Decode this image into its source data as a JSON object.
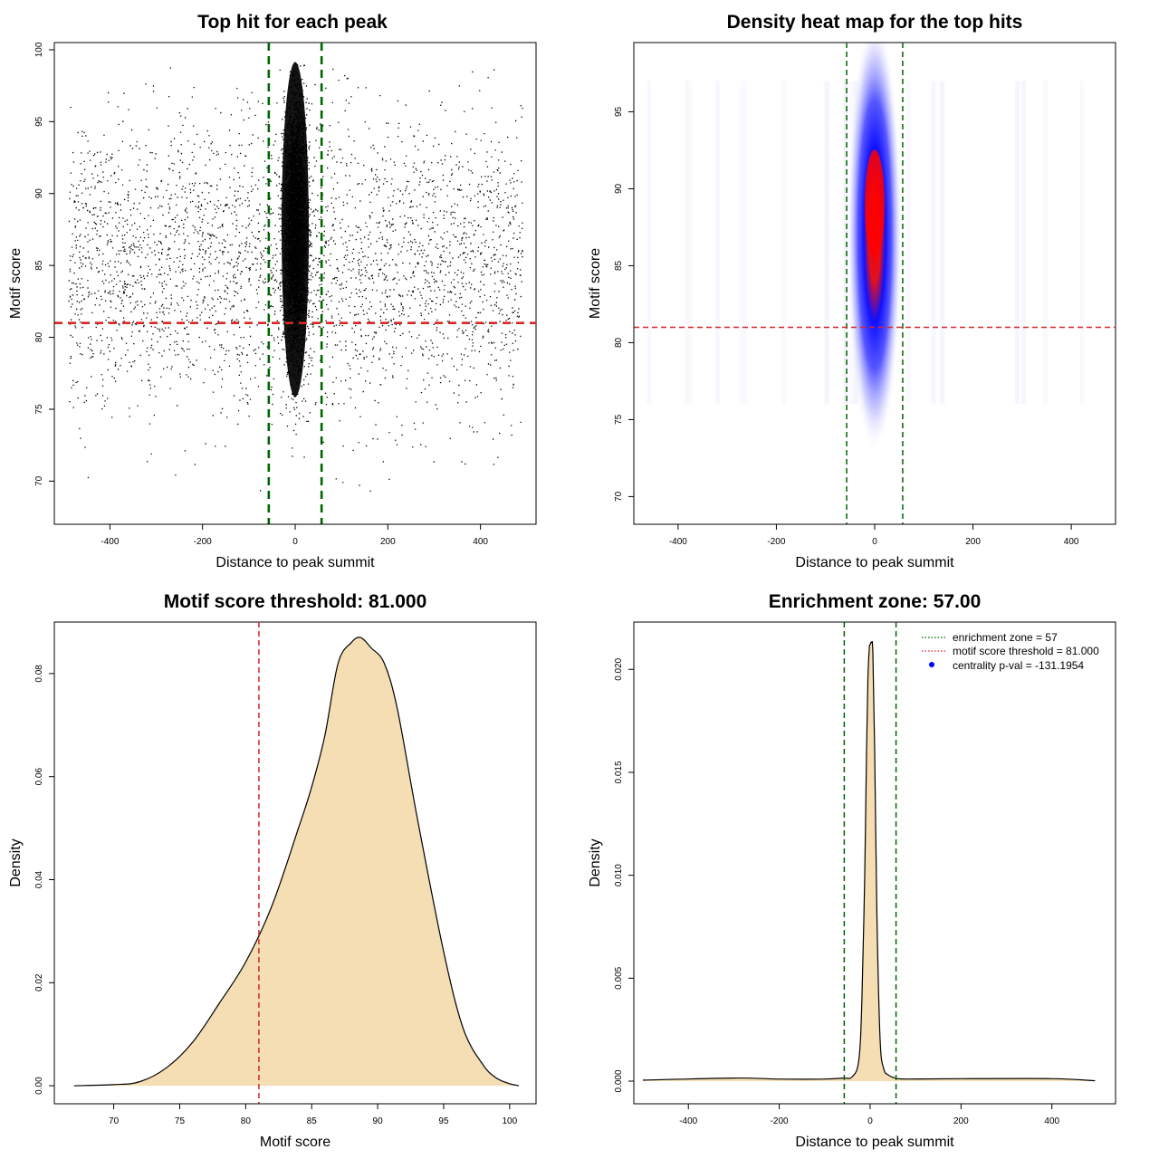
{
  "chart_data": [
    {
      "type": "scatter",
      "title": "Top hit for each peak",
      "xlabel": "Distance to peak summit",
      "ylabel": "Motif score",
      "xlim": [
        -520,
        520
      ],
      "ylim": [
        67,
        100.5
      ],
      "xticks": [
        -400,
        -200,
        0,
        200,
        400
      ],
      "yticks": [
        70,
        75,
        80,
        85,
        90,
        95,
        100
      ],
      "vlines": [
        -57,
        57
      ],
      "hline": 81,
      "vline_color": "#006400",
      "hline_color": "#d62728",
      "point_color": "#000000",
      "background_points_range": {
        "x": [
          -490,
          490
        ],
        "y": [
          68,
          99
        ]
      },
      "central_cluster": {
        "x_center": 0,
        "x_spread": 12,
        "y_range": [
          73,
          99
        ]
      }
    },
    {
      "type": "heatmap",
      "title": "Density heat map for the top hits",
      "xlabel": "Distance to peak summit",
      "ylabel": "Motif score",
      "xlim": [
        -490,
        490
      ],
      "ylim": [
        68.2,
        99.5
      ],
      "xticks": [
        -400,
        -200,
        0,
        200,
        400
      ],
      "yticks": [
        70,
        75,
        80,
        85,
        90,
        95
      ],
      "vlines": [
        -57,
        57
      ],
      "hline": 81,
      "peak": {
        "x": 0,
        "y": 89
      },
      "colors": [
        "#ffffff",
        "#0000ff",
        "#ff0000"
      ]
    },
    {
      "type": "area",
      "title": "Motif score threshold: 81.000",
      "xlabel": "Motif score",
      "ylabel": "Density",
      "xlim": [
        65.5,
        102
      ],
      "ylim": [
        -0.0035,
        0.09
      ],
      "xticks": [
        70,
        75,
        80,
        85,
        90,
        95,
        100
      ],
      "yticks": [
        0.0,
        0.02,
        0.04,
        0.06,
        0.08
      ],
      "ytick_labels": [
        "0.00",
        "0.02",
        "0.04",
        "0.06",
        "0.08"
      ],
      "vline": 81,
      "fill_color": "#f5deb3",
      "x": [
        67,
        70,
        72,
        74,
        76,
        78,
        80,
        82,
        84,
        85,
        86,
        87,
        88,
        88.7,
        89.5,
        90.5,
        91.5,
        93,
        95,
        96.5,
        98,
        99,
        100,
        100.7
      ],
      "y": [
        0.0,
        0.0002,
        0.0008,
        0.0035,
        0.0085,
        0.016,
        0.024,
        0.035,
        0.05,
        0.058,
        0.068,
        0.082,
        0.086,
        0.087,
        0.085,
        0.082,
        0.073,
        0.052,
        0.026,
        0.011,
        0.004,
        0.0015,
        0.0004,
        0.0
      ]
    },
    {
      "type": "area",
      "title": "Enrichment zone: 57.00",
      "xlabel": "Distance to peak summit",
      "ylabel": "Density",
      "xlim": [
        -520,
        540
      ],
      "ylim": [
        -0.0011,
        0.0223
      ],
      "xticks": [
        -400,
        -200,
        0,
        200,
        400
      ],
      "yticks": [
        0.0,
        0.005,
        0.01,
        0.015,
        0.02
      ],
      "ytick_labels": [
        "0.000",
        "0.005",
        "0.010",
        "0.015",
        "0.020"
      ],
      "vlines": [
        -57,
        57
      ],
      "fill_color": "#f5deb3",
      "x": [
        -500,
        -300,
        -200,
        -100,
        -60,
        -40,
        -25,
        -18,
        -12,
        -8,
        -5,
        -2,
        0,
        3,
        6,
        10,
        15,
        22,
        30,
        40,
        55,
        80,
        200,
        400,
        495
      ],
      "y": [
        5e-05,
        0.00015,
        0.0001,
        0.0001,
        0.00015,
        0.0002,
        0.001,
        0.004,
        0.01,
        0.016,
        0.0195,
        0.021,
        0.0212,
        0.0213,
        0.0208,
        0.016,
        0.008,
        0.002,
        0.0006,
        0.0003,
        0.00015,
        0.0001,
        0.00012,
        0.00012,
        2e-05
      ],
      "legend": {
        "position": "top-right",
        "entries": [
          {
            "label": "enrichment zone = 57",
            "color": "#006400",
            "kind": "dotted-line"
          },
          {
            "label": "motif score threshold = 81.000",
            "color": "#d62728",
            "kind": "dotted-line"
          },
          {
            "label": "centrality p-val = -131.1954",
            "color": "#0000ff",
            "kind": "point"
          }
        ]
      }
    }
  ]
}
